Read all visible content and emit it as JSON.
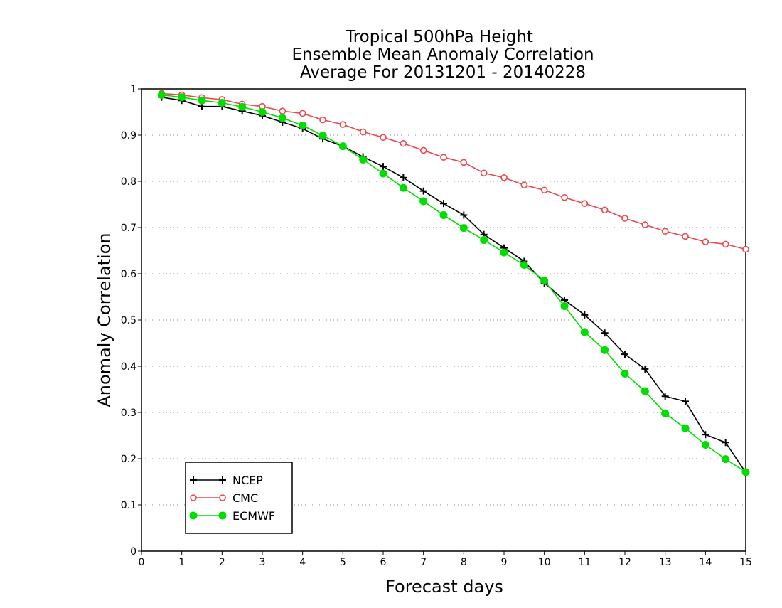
{
  "chart_data": {
    "type": "line",
    "title": [
      "Tropical 500hPa Height",
      "Ensemble Mean Anomaly Correlation",
      "Average For 20131201 - 20140228"
    ],
    "xlabel": "Forecast days",
    "ylabel": "Anomaly Correlation",
    "xlim": [
      0,
      15
    ],
    "ylim": [
      0,
      1
    ],
    "xticks": [
      "0",
      "1",
      "2",
      "3",
      "4",
      "5",
      "6",
      "7",
      "8",
      "9",
      "10",
      "11",
      "12",
      "13",
      "14",
      "15"
    ],
    "yticks": [
      "0",
      "0.1",
      "0.2",
      "0.3",
      "0.4",
      "0.5",
      "0.6",
      "0.7",
      "0.8",
      "0.9",
      "1"
    ],
    "grid": "horizontal dotted",
    "legend_position": "bottom-left",
    "x": [
      0.5,
      1,
      1.5,
      2,
      2.5,
      3,
      3.5,
      4,
      4.5,
      5,
      5.5,
      6,
      6.5,
      7,
      7.5,
      8,
      8.5,
      9,
      9.5,
      10,
      10.5,
      11,
      11.5,
      12,
      12.5,
      13,
      13.5,
      14,
      14.5,
      15
    ],
    "series": [
      {
        "name": "NCEP",
        "color": "#000000",
        "marker": "plus",
        "values": [
          0.982,
          0.975,
          0.962,
          0.962,
          0.952,
          0.942,
          0.928,
          0.914,
          0.892,
          0.876,
          0.853,
          0.832,
          0.808,
          0.779,
          0.752,
          0.727,
          0.685,
          0.656,
          0.627,
          0.58,
          0.543,
          0.511,
          0.472,
          0.426,
          0.394,
          0.335,
          0.324,
          0.252,
          0.235,
          0.17
        ]
      },
      {
        "name": "CMC",
        "color": "#e8474b",
        "marker": "open-circle",
        "values": [
          0.99,
          0.987,
          0.981,
          0.977,
          0.967,
          0.962,
          0.952,
          0.947,
          0.933,
          0.923,
          0.907,
          0.895,
          0.882,
          0.867,
          0.852,
          0.841,
          0.818,
          0.808,
          0.792,
          0.781,
          0.765,
          0.752,
          0.738,
          0.72,
          0.706,
          0.692,
          0.681,
          0.669,
          0.664,
          0.653
        ]
      },
      {
        "name": "ECMWF",
        "color": "#00dd00",
        "marker": "filled-circle",
        "values": [
          0.987,
          0.982,
          0.975,
          0.97,
          0.961,
          0.95,
          0.937,
          0.921,
          0.899,
          0.876,
          0.847,
          0.817,
          0.786,
          0.757,
          0.727,
          0.699,
          0.673,
          0.646,
          0.619,
          0.585,
          0.53,
          0.474,
          0.435,
          0.384,
          0.346,
          0.298,
          0.266,
          0.23,
          0.199,
          0.171
        ]
      }
    ]
  }
}
